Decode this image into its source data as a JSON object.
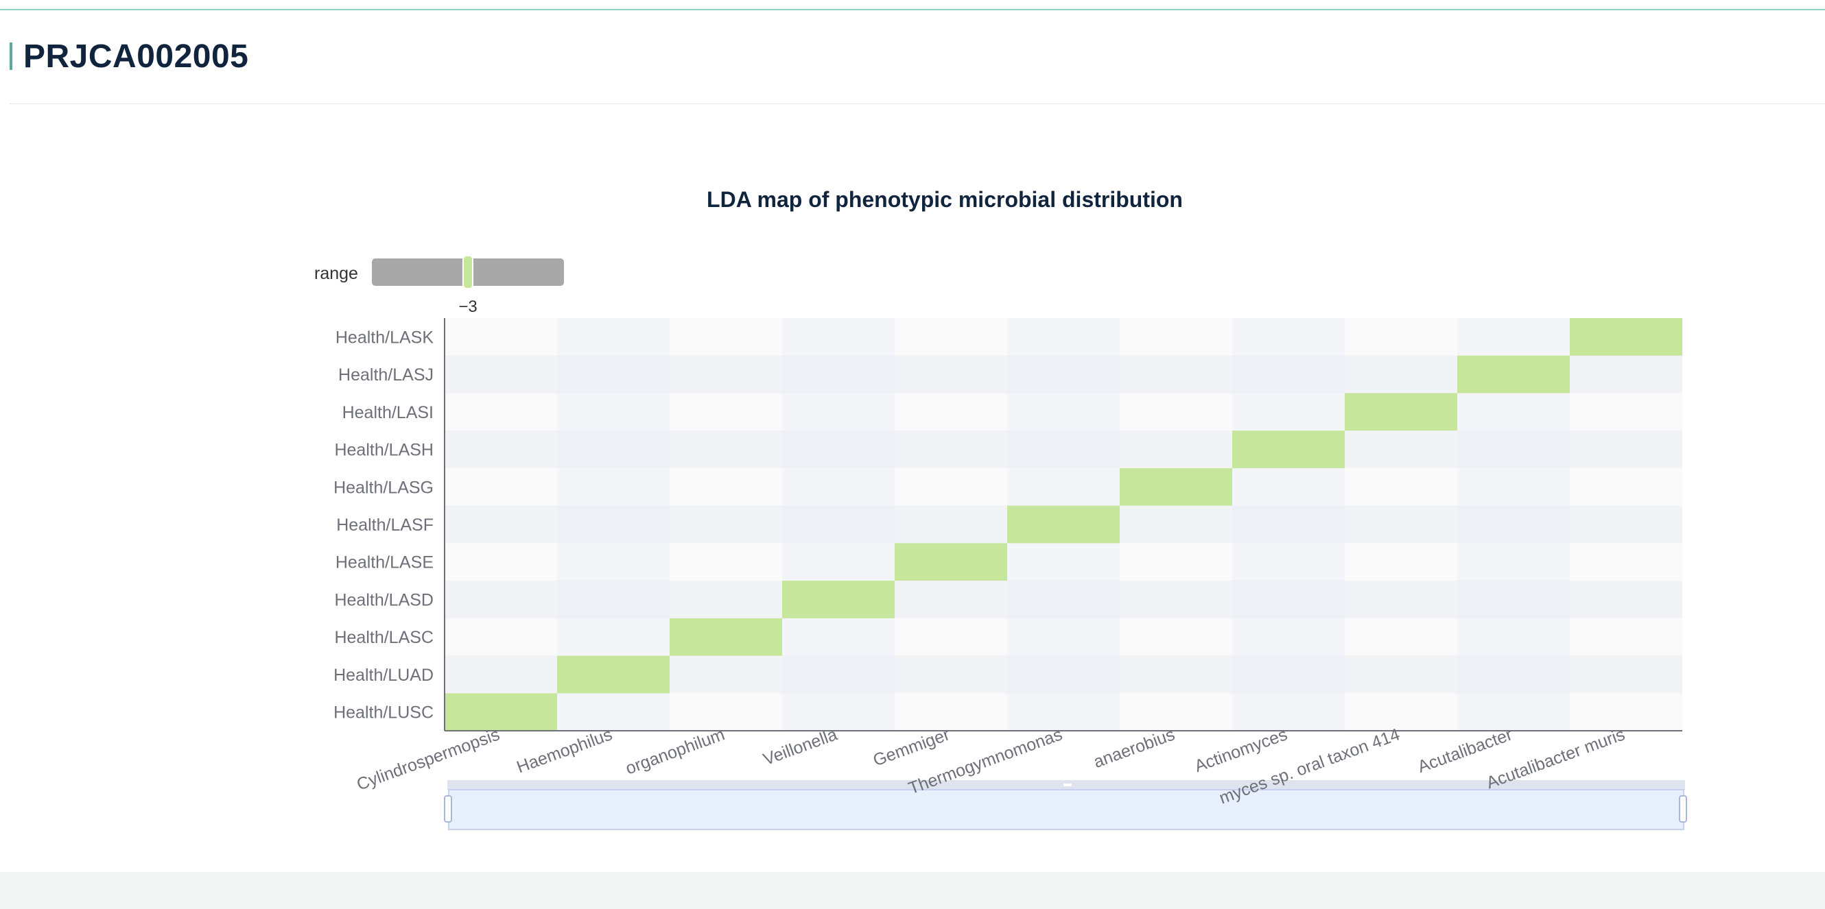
{
  "page": {
    "title": "PRJCA002005"
  },
  "colors": {
    "accent": "#5aa89e",
    "cell_highlight": "#c6e79b",
    "stripe_light": "#fafafa",
    "stripe_dark": "#f3f5f9",
    "slider_track": "#a8a8a8",
    "datazoom_fill": "#e8effd"
  },
  "visual_map": {
    "label": "range",
    "value_label": "−3",
    "value": -3
  },
  "chart_data": {
    "type": "heatmap",
    "title": "LDA map of phenotypic microbial distribution",
    "x_categories": [
      "Cylindrospermopsis",
      "Haemophilus",
      "organophilum",
      "Veillonella",
      "Gemmiger",
      "Thermogymnomonas",
      "anaerobius",
      "Actinomyces",
      "myces sp. oral taxon 414",
      "Acutalibacter",
      "Acutalibacter muris"
    ],
    "y_categories": [
      "Health/LUSC",
      "Health/LUAD",
      "Health/LASC",
      "Health/LASD",
      "Health/LASE",
      "Health/LASF",
      "Health/LASG",
      "Health/LASH",
      "Health/LASI",
      "Health/LASJ",
      "Health/LASK"
    ],
    "cells": [
      [
        0,
        0,
        -3
      ],
      [
        1,
        1,
        -3
      ],
      [
        2,
        2,
        -3
      ],
      [
        3,
        3,
        -3
      ],
      [
        4,
        4,
        -3
      ],
      [
        5,
        5,
        -3
      ],
      [
        6,
        6,
        -3
      ],
      [
        7,
        7,
        -3
      ],
      [
        8,
        8,
        -3
      ],
      [
        9,
        9,
        -3
      ],
      [
        10,
        10,
        -3
      ]
    ],
    "grid": false,
    "data_zoom": true
  }
}
